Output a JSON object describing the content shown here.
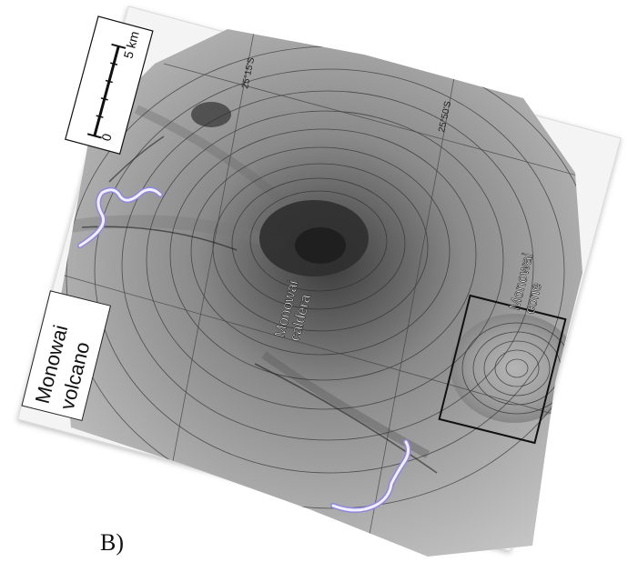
{
  "figure": {
    "panel_label": "B)"
  },
  "map": {
    "title_line1": "Monowai",
    "title_line2": "volcano",
    "scale_bar": {
      "tick_start": "0",
      "tick_end": "5 km"
    },
    "graticule_labels": [
      "25°15'S",
      "25°50'S"
    ],
    "feature_labels": {
      "caldera_line1": "Monowai",
      "caldera_line2": "caldera",
      "cone_line1": "Monowai",
      "cone_line2": "cone"
    },
    "colors": {
      "page_background": "#ffffff",
      "map_paper": "#f4f4f4",
      "bathymetry_light": "#b9b9b9",
      "bathymetry_dark": "#3a3a3a",
      "contour_line": "#2a2a2a",
      "highlight_trace": "#cfc9ff",
      "highlight_trace_outline": "#8f86e0"
    }
  }
}
